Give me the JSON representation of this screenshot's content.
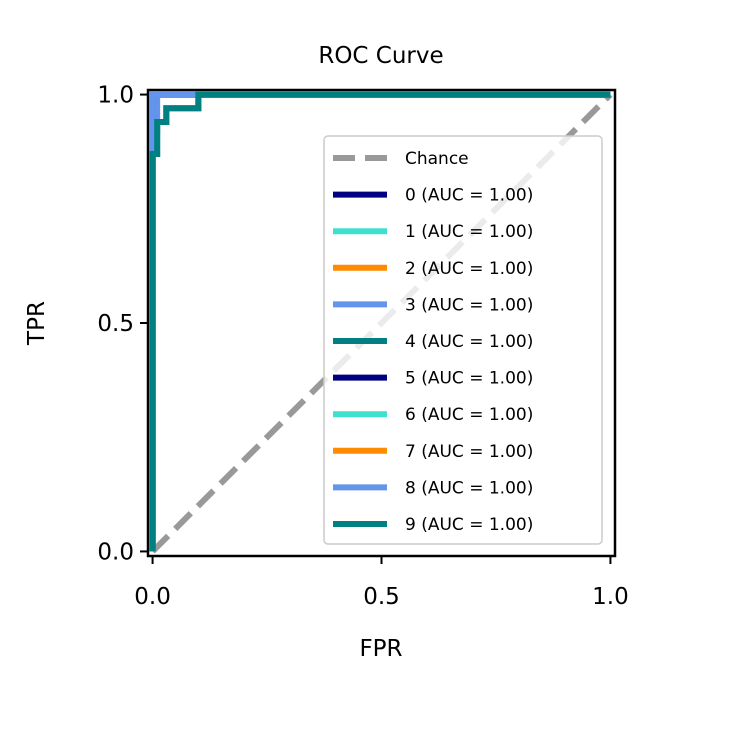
{
  "chart_data": {
    "type": "line",
    "title": "ROC Curve",
    "xlabel": "FPR",
    "ylabel": "TPR",
    "xlim": [
      -0.01,
      1.01
    ],
    "ylim": [
      -0.01,
      1.01
    ],
    "x_ticks": [
      {
        "value": 0.0,
        "label": "0.0"
      },
      {
        "value": 0.5,
        "label": "0.5"
      },
      {
        "value": 1.0,
        "label": "1.0"
      }
    ],
    "y_ticks": [
      {
        "value": 0.0,
        "label": "0.0"
      },
      {
        "value": 0.5,
        "label": "0.5"
      },
      {
        "value": 1.0,
        "label": "1.0"
      }
    ],
    "grid": false,
    "legend_position": "lower-right",
    "chance": {
      "name": "Chance",
      "color": "#999999",
      "style": "dashed",
      "x": [
        0,
        1
      ],
      "y": [
        0,
        1
      ]
    },
    "series": [
      {
        "name": "0 (AUC = 1.00)",
        "color": "#000080",
        "x": [
          0,
          0,
          1
        ],
        "y": [
          0,
          1,
          1
        ]
      },
      {
        "name": "1 (AUC = 1.00)",
        "color": "#40E0D0",
        "x": [
          0,
          0,
          1
        ],
        "y": [
          0,
          1,
          1
        ]
      },
      {
        "name": "2 (AUC = 1.00)",
        "color": "#FF8C00",
        "x": [
          0,
          0,
          1
        ],
        "y": [
          0,
          1,
          1
        ]
      },
      {
        "name": "3 (AUC = 1.00)",
        "color": "#6495ED",
        "x": [
          0,
          0,
          0.01,
          0.01,
          1
        ],
        "y": [
          0,
          0.92,
          0.92,
          1,
          1
        ]
      },
      {
        "name": "4 (AUC = 1.00)",
        "color": "#008080",
        "x": [
          0,
          0,
          0.01,
          0.01,
          0.03,
          0.03,
          0.1,
          0.1,
          1
        ],
        "y": [
          0,
          0.87,
          0.87,
          0.94,
          0.94,
          0.97,
          0.97,
          1,
          1
        ]
      },
      {
        "name": "5 (AUC = 1.00)",
        "color": "#000080",
        "x": [
          0,
          0,
          1
        ],
        "y": [
          0,
          1,
          1
        ]
      },
      {
        "name": "6 (AUC = 1.00)",
        "color": "#40E0D0",
        "x": [
          0,
          0,
          1
        ],
        "y": [
          0,
          1,
          1
        ]
      },
      {
        "name": "7 (AUC = 1.00)",
        "color": "#FF8C00",
        "x": [
          0,
          0,
          1
        ],
        "y": [
          0,
          1,
          1
        ]
      },
      {
        "name": "8 (AUC = 1.00)",
        "color": "#6495ED",
        "x": [
          0,
          0,
          1
        ],
        "y": [
          0,
          1,
          1
        ]
      },
      {
        "name": "9 (AUC = 1.00)",
        "color": "#008080",
        "x": [
          0,
          0,
          0.01,
          0.01,
          0.03,
          0.03,
          0.1,
          0.1,
          1
        ],
        "y": [
          0,
          0.87,
          0.87,
          0.94,
          0.94,
          0.97,
          0.97,
          1,
          1
        ]
      }
    ]
  }
}
